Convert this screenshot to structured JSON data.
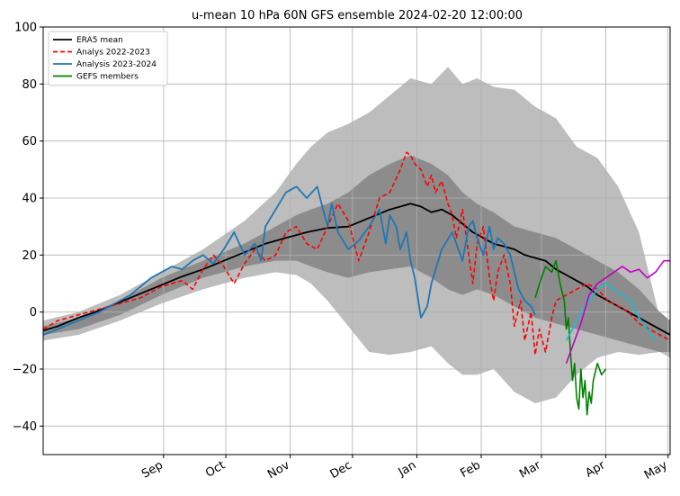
{
  "chart_data": {
    "type": "line",
    "title": "u-mean 10 hPa 60N GFS ensemble 2024-02-20 12:00:00",
    "xlabel": "",
    "ylabel": "",
    "ylim": [
      -50,
      100
    ],
    "xlim": [
      -27,
      275
    ],
    "x_unit": "days from 2023-08-01",
    "yticks": [
      -40,
      -20,
      0,
      20,
      40,
      60,
      80,
      100
    ],
    "month_ticks": [
      {
        "label": "Sep",
        "x": 31
      },
      {
        "label": "Oct",
        "x": 61
      },
      {
        "label": "Nov",
        "x": 92
      },
      {
        "label": "Dec",
        "x": 122
      },
      {
        "label": "Jan",
        "x": 153
      },
      {
        "label": "Feb",
        "x": 184
      },
      {
        "label": "Mar",
        "x": 213
      },
      {
        "label": "Apr",
        "x": 244
      },
      {
        "label": "May",
        "x": 274
      }
    ],
    "grid": true,
    "legend_position": "top-left",
    "colors": {
      "outer_band": "#bdbdbd",
      "inner_band": "#8c8c8c",
      "era5": "#000000",
      "analys_2022": "#ff0000",
      "analysis_2023": "#1f77b4",
      "gefs": "#008000",
      "cyan": "#17becf",
      "magenta": "#c000c8"
    },
    "legend": [
      {
        "label": "ERA5 mean",
        "color": "#000000",
        "dash": ""
      },
      {
        "label": "Analys 2022-2023",
        "color": "#ff0000",
        "dash": "5,3"
      },
      {
        "label": "Analysis 2023-2024",
        "color": "#1f77b4",
        "dash": ""
      },
      {
        "label": "GEFS members",
        "color": "#008000",
        "dash": ""
      }
    ],
    "bands": {
      "outer": {
        "x": [
          -27,
          -10,
          10,
          30,
          50,
          70,
          85,
          95,
          102,
          110,
          120,
          130,
          140,
          150,
          160,
          168,
          175,
          182,
          190,
          200,
          210,
          220,
          230,
          240,
          250,
          260,
          270,
          275
        ],
        "upper": [
          -3,
          0,
          6,
          14,
          22,
          32,
          42,
          52,
          58,
          63,
          66,
          70,
          76,
          82,
          80,
          86,
          80,
          82,
          79,
          78,
          72,
          68,
          58,
          54,
          44,
          28,
          -2,
          -4
        ],
        "lower": [
          -10,
          -8,
          -3,
          3,
          8,
          12,
          14,
          13,
          10,
          4,
          -5,
          -14,
          -15,
          -14,
          -12,
          -18,
          -22,
          -22,
          -20,
          -28,
          -32,
          -30,
          -22,
          -16,
          -14,
          -15,
          -14,
          -16
        ]
      },
      "inner": {
        "x": [
          -27,
          -10,
          10,
          30,
          50,
          70,
          85,
          95,
          102,
          110,
          120,
          130,
          140,
          150,
          160,
          168,
          175,
          182,
          190,
          200,
          210,
          220,
          230,
          240,
          250,
          260,
          270,
          275
        ],
        "upper": [
          -5,
          -2,
          4,
          12,
          18,
          24,
          30,
          34,
          36,
          38,
          42,
          48,
          52,
          55,
          52,
          48,
          42,
          38,
          35,
          30,
          28,
          26,
          22,
          18,
          14,
          8,
          0,
          -3
        ],
        "lower": [
          -8,
          -6,
          -1,
          6,
          12,
          16,
          18,
          18,
          16,
          14,
          12,
          14,
          15,
          16,
          12,
          8,
          6,
          8,
          6,
          2,
          -2,
          -4,
          -6,
          -8,
          -10,
          -12,
          -14,
          -14
        ]
      }
    },
    "series": [
      {
        "name": "ERA5 mean",
        "color": "#000000",
        "width": 1.8,
        "x": [
          -27,
          -20,
          -10,
          0,
          10,
          20,
          30,
          40,
          50,
          60,
          70,
          80,
          90,
          100,
          110,
          120,
          130,
          140,
          145,
          150,
          155,
          160,
          165,
          170,
          175,
          180,
          185,
          190,
          195,
          200,
          205,
          210,
          215,
          220,
          225,
          230,
          235,
          240,
          245,
          250,
          255,
          260,
          265,
          270,
          275
        ],
        "y": [
          -6.5,
          -5,
          -2,
          0.5,
          3.5,
          6.5,
          9.5,
          12.5,
          15,
          18,
          21,
          24,
          26,
          28,
          29.5,
          30,
          33,
          36,
          37,
          38,
          37,
          35,
          36,
          34,
          31,
          28,
          26,
          24,
          23,
          22,
          20,
          19,
          18,
          15,
          13,
          11,
          9,
          6,
          4,
          2,
          0,
          -2,
          -4,
          -6,
          -8
        ]
      },
      {
        "name": "Analys 2022-2023",
        "color": "#ff0000",
        "width": 1.6,
        "dash": "5,3",
        "x": [
          -27,
          -20,
          -10,
          0,
          10,
          20,
          30,
          40,
          45,
          50,
          55,
          60,
          65,
          70,
          75,
          80,
          85,
          90,
          95,
          100,
          105,
          110,
          115,
          120,
          125,
          130,
          135,
          140,
          145,
          148,
          150,
          152,
          155,
          158,
          160,
          162,
          165,
          168,
          170,
          172,
          175,
          178,
          180,
          182,
          185,
          188,
          190,
          192,
          195,
          198,
          200,
          203,
          205,
          208,
          210,
          212,
          215,
          218,
          220,
          225,
          230,
          235,
          240,
          245,
          250,
          255,
          260,
          265,
          270,
          275
        ],
        "y": [
          -6,
          -3,
          -1,
          1,
          3,
          5,
          9,
          11,
          8,
          15,
          20,
          16,
          10,
          17,
          22,
          18,
          20,
          28,
          30,
          24,
          22,
          30,
          38,
          32,
          18,
          28,
          40,
          42,
          50,
          56,
          55,
          52,
          50,
          44,
          48,
          42,
          46,
          38,
          34,
          26,
          36,
          20,
          10,
          24,
          30,
          12,
          4,
          14,
          20,
          10,
          -5,
          4,
          -10,
          0,
          -15,
          -6,
          -14,
          -2,
          4,
          6,
          8,
          10,
          8,
          4,
          2,
          0,
          -4,
          -6,
          -8,
          -10
        ]
      },
      {
        "name": "Analysis 2023-2024",
        "color": "#1f77b4",
        "width": 1.8,
        "x": [
          -27,
          -20,
          -10,
          0,
          5,
          10,
          15,
          20,
          25,
          30,
          35,
          40,
          45,
          50,
          55,
          60,
          65,
          70,
          75,
          78,
          80,
          85,
          90,
          95,
          100,
          105,
          110,
          112,
          115,
          120,
          125,
          130,
          135,
          138,
          140,
          143,
          145,
          148,
          150,
          152,
          155,
          158,
          160,
          165,
          170,
          175,
          178,
          180,
          182,
          185,
          188,
          190,
          192,
          195,
          198,
          200,
          202,
          205,
          208,
          210
        ],
        "y": [
          -8,
          -6,
          -3,
          0,
          2,
          4,
          6,
          9,
          12,
          14,
          16,
          15,
          18,
          20,
          17,
          22,
          28,
          20,
          24,
          18,
          30,
          36,
          42,
          44,
          40,
          44,
          30,
          38,
          28,
          22,
          25,
          30,
          36,
          24,
          34,
          30,
          22,
          28,
          18,
          12,
          -2,
          2,
          10,
          22,
          28,
          18,
          30,
          32,
          26,
          20,
          30,
          22,
          26,
          24,
          20,
          14,
          8,
          4,
          2,
          -1
        ]
      },
      {
        "name": "GEFS members",
        "color": "#008000",
        "width": 1.6,
        "x": [
          210,
          213,
          215,
          218,
          220,
          222,
          224,
          225,
          226,
          227,
          228,
          229,
          230,
          231,
          232,
          233,
          234,
          235,
          236,
          237,
          238,
          240,
          242,
          244
        ],
        "y": [
          5,
          12,
          16,
          14,
          18,
          10,
          4,
          -6,
          -2,
          -14,
          -24,
          -18,
          -30,
          -34,
          -20,
          -30,
          -24,
          -36,
          -28,
          -32,
          -24,
          -18,
          -22,
          -20
        ]
      },
      {
        "name": "",
        "color": "#17becf",
        "width": 1.6,
        "x": [
          225,
          228,
          232,
          236,
          240,
          244,
          248,
          252,
          256,
          260,
          264,
          268
        ],
        "y": [
          -10,
          -6,
          0,
          4,
          8,
          10,
          8,
          6,
          4,
          -2,
          -6,
          -10
        ]
      },
      {
        "name": "",
        "color": "#c000c8",
        "width": 1.6,
        "x": [
          225,
          228,
          232,
          236,
          240,
          244,
          248,
          252,
          256,
          260,
          264,
          268,
          272,
          275
        ],
        "y": [
          -18,
          -12,
          -4,
          6,
          10,
          12,
          14,
          16,
          14,
          15,
          12,
          14,
          18,
          18
        ]
      }
    ]
  }
}
